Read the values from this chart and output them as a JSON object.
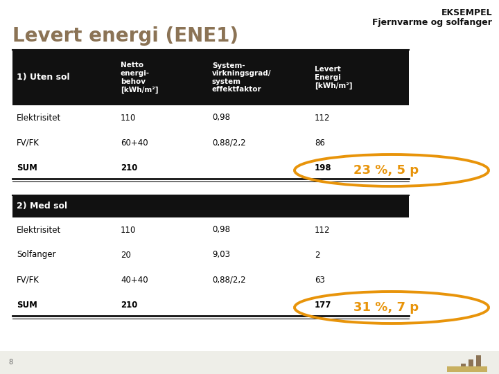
{
  "title": "Levert energi (ENE1)",
  "title_color": "#8B7355",
  "eksempel_line1": "EKSEMPEL",
  "eksempel_line2": "Fjernvarme og solfanger",
  "bg_color": "#FFFFFF",
  "header_bg": "#111111",
  "footer_bg": "#EEEEE8",
  "orange_color": "#E8940A",
  "section1_header": "1) Uten sol",
  "section2_header": "2) Med sol",
  "col_headers": [
    "Netto\nenergi-\nbehov\n[kWh/m²]",
    "System-\nvirkningsgrad/\nsystem\neffektfaktor",
    "Levert\nEnergi\n[kWh/m²]"
  ],
  "section1_rows": [
    [
      "Elektrisitet",
      "110",
      "0,98",
      "112"
    ],
    [
      "FV/FK",
      "60+40",
      "0,88/2,2",
      "86"
    ],
    [
      "SUM",
      "210",
      "",
      "198"
    ]
  ],
  "section2_rows": [
    [
      "Elektrisitet",
      "110",
      "0,98",
      "112"
    ],
    [
      "Solfanger",
      "20",
      "9,03",
      "2"
    ],
    [
      "FV/FK",
      "40+40",
      "0,88/2,2",
      "63"
    ],
    [
      "SUM",
      "210",
      "",
      "177"
    ]
  ],
  "annotation1": "23 %, 5 p",
  "annotation2": "31 %, 7 p",
  "footer_num": "8",
  "logo_color": "#8B7355"
}
